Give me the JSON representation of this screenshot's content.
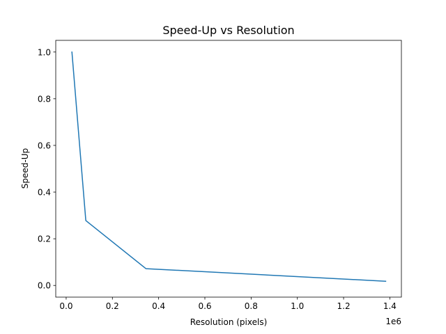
{
  "chart_data": {
    "type": "line",
    "title": "Speed-Up vs Resolution",
    "xlabel": "Resolution (pixels)",
    "ylabel": "Speed-Up",
    "x_offset_label": "1e6",
    "x_scale": 1000000,
    "xlim": [
      -45000,
      1450000
    ],
    "ylim": [
      -0.05,
      1.05
    ],
    "x_ticks": [
      0,
      200000,
      400000,
      600000,
      800000,
      1000000,
      1200000,
      1400000
    ],
    "x_tick_labels": [
      "0.0",
      "0.2",
      "0.4",
      "0.6",
      "0.8",
      "1.0",
      "1.2",
      "1.4"
    ],
    "y_ticks": [
      0.0,
      0.2,
      0.4,
      0.6,
      0.8,
      1.0
    ],
    "y_tick_labels": [
      "0.0",
      "0.2",
      "0.4",
      "0.6",
      "0.8",
      "1.0"
    ],
    "grid": false,
    "series": [
      {
        "color": "#1f77b4",
        "x": [
          25000,
          85000,
          345000,
          1382000
        ],
        "y": [
          1.0,
          0.278,
          0.072,
          0.018
        ]
      }
    ]
  }
}
